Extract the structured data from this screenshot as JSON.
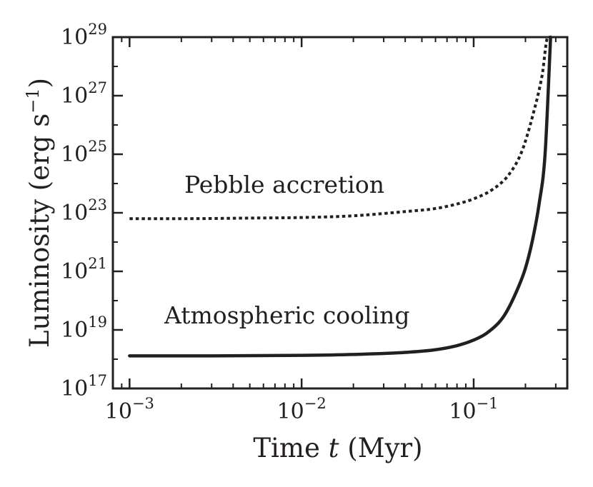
{
  "chart_data": {
    "type": "line",
    "xlabel_prefix": "Time",
    "xlabel_var": "t",
    "xlabel_unit": "(Myr)",
    "ylabel": "Luminosity (erg s",
    "ylabel_exp": "−1",
    "ylabel_close": ")",
    "xscale": "log",
    "yscale": "log",
    "xlim": [
      0.0008,
      0.35
    ],
    "ylim": [
      1e+17,
      1e+29
    ],
    "x_ticks": [
      {
        "value": 0.001,
        "base": "10",
        "exp": "−3"
      },
      {
        "value": 0.01,
        "base": "10",
        "exp": "−2"
      },
      {
        "value": 0.1,
        "base": "10",
        "exp": "−1"
      }
    ],
    "y_ticks": [
      {
        "value": 1e+17,
        "base": "10",
        "exp": "17"
      },
      {
        "value": 1e+19,
        "base": "10",
        "exp": "19"
      },
      {
        "value": 1e+21,
        "base": "10",
        "exp": "21"
      },
      {
        "value": 1e+23,
        "base": "10",
        "exp": "23"
      },
      {
        "value": 1e+25,
        "base": "10",
        "exp": "25"
      },
      {
        "value": 1e+27,
        "base": "10",
        "exp": "27"
      },
      {
        "value": 1e+29,
        "base": "10",
        "exp": "29"
      }
    ],
    "series": [
      {
        "name": "Pebble accretion",
        "style": "dotted",
        "color": "#231f20",
        "x": [
          0.001,
          0.002,
          0.005,
          0.01,
          0.02,
          0.04,
          0.06,
          0.08,
          0.1,
          0.13,
          0.16,
          0.19,
          0.22,
          0.25,
          0.27,
          0.28
        ],
        "y": [
          6.3e+22,
          6.3e+22,
          6.6e+22,
          6.9e+22,
          7.9e+22,
          1.1e+23,
          1.4e+23,
          2e+23,
          3e+23,
          6.5e+23,
          2e+24,
          1.2e+25,
          2e+26,
          5e+27,
          1e+29,
          1e+29
        ]
      },
      {
        "name": "Atmospheric cooling",
        "style": "solid",
        "color": "#231f20",
        "x": [
          0.001,
          0.003,
          0.01,
          0.02,
          0.04,
          0.06,
          0.08,
          0.1,
          0.12,
          0.15,
          0.18,
          0.2,
          0.22,
          0.24,
          0.26,
          0.28
        ],
        "y": [
          1.3e+18,
          1.3e+18,
          1.35e+18,
          1.45e+18,
          1.7e+18,
          2.1e+18,
          2.9e+18,
          4.5e+18,
          8e+18,
          3e+19,
          2.5e+20,
          1.3e+21,
          1.2e+22,
          2e+23,
          1e+25,
          1e+29
        ]
      }
    ],
    "annotations": [
      "Pebble accretion",
      "Atmospheric cooling"
    ]
  }
}
